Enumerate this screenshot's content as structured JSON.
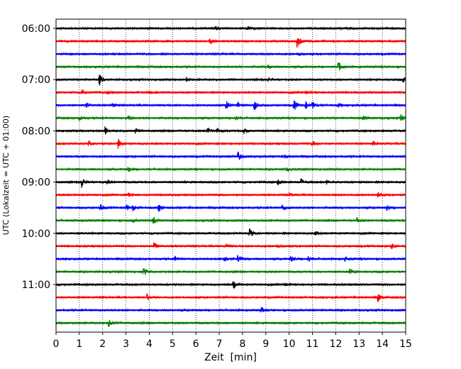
{
  "chart_data": {
    "type": "line",
    "xlabel": "Zeit  [min]",
    "ylabel": "UTC (Lokalzeit = UTC + 01:00)",
    "xlim": [
      0,
      15
    ],
    "xticks": [
      "0",
      "1",
      "2",
      "3",
      "4",
      "5",
      "6",
      "7",
      "8",
      "9",
      "10",
      "11",
      "12",
      "13",
      "14",
      "15"
    ],
    "yticks": [
      {
        "label": "06:00",
        "row": 0
      },
      {
        "label": "07:00",
        "row": 4
      },
      {
        "label": "08:00",
        "row": 8
      },
      {
        "label": "09:00",
        "row": 12
      },
      {
        "label": "10:00",
        "row": 16
      },
      {
        "label": "11:00",
        "row": 20
      }
    ],
    "row_interval_min": 15,
    "start_time": "06:00",
    "grid": "vertical dotted at each minute",
    "series_colors": [
      "#000000",
      "#ff0000",
      "#0000ff",
      "#008000"
    ],
    "traces": [
      {
        "start": "06:00",
        "color": "#000000",
        "events": [
          [
            6.8,
            0.3
          ],
          [
            8.2,
            0.3
          ]
        ]
      },
      {
        "start": "06:15",
        "color": "#ff0000",
        "events": [
          [
            6.6,
            0.5
          ],
          [
            10.35,
            1.3
          ]
        ]
      },
      {
        "start": "06:30",
        "color": "#0000ff",
        "events": [
          [
            4.5,
            0.25
          ],
          [
            10.4,
            0.3
          ]
        ]
      },
      {
        "start": "06:45",
        "color": "#008000",
        "events": [
          [
            9.1,
            0.3
          ],
          [
            12.1,
            0.9
          ]
        ]
      },
      {
        "start": "07:00",
        "color": "#000000",
        "events": [
          [
            1.85,
            1.0
          ],
          [
            5.6,
            0.3
          ],
          [
            9.1,
            0.3
          ],
          [
            14.9,
            0.45
          ]
        ]
      },
      {
        "start": "07:15",
        "color": "#ff0000",
        "events": [
          [
            1.1,
            0.4
          ],
          [
            2.2,
            0.35
          ],
          [
            4.0,
            0.3
          ],
          [
            10.7,
            0.3
          ]
        ]
      },
      {
        "start": "07:30",
        "color": "#0000ff",
        "events": [
          [
            1.3,
            0.35
          ],
          [
            2.4,
            0.35
          ],
          [
            7.3,
            0.8
          ],
          [
            7.8,
            0.5
          ],
          [
            8.5,
            0.9
          ],
          [
            10.2,
            1.0
          ],
          [
            10.7,
            0.6
          ],
          [
            11.0,
            0.5
          ],
          [
            12.1,
            0.35
          ]
        ]
      },
      {
        "start": "07:45",
        "color": "#008000",
        "events": [
          [
            1.0,
            0.45
          ],
          [
            3.1,
            0.4
          ],
          [
            7.7,
            0.4
          ],
          [
            13.2,
            0.35
          ],
          [
            14.8,
            0.85
          ]
        ]
      },
      {
        "start": "08:00",
        "color": "#000000",
        "events": [
          [
            2.1,
            0.7
          ],
          [
            3.4,
            0.55
          ],
          [
            6.5,
            0.6
          ],
          [
            6.9,
            0.4
          ],
          [
            8.05,
            0.45
          ]
        ]
      },
      {
        "start": "08:15",
        "color": "#ff0000",
        "events": [
          [
            1.4,
            0.5
          ],
          [
            2.65,
            0.9
          ],
          [
            11.0,
            0.35
          ],
          [
            13.6,
            0.45
          ]
        ]
      },
      {
        "start": "08:30",
        "color": "#0000ff",
        "events": [
          [
            7.8,
            0.8
          ],
          [
            9.8,
            0.3
          ]
        ]
      },
      {
        "start": "08:45",
        "color": "#008000",
        "events": [
          [
            3.1,
            0.4
          ],
          [
            9.9,
            0.3
          ]
        ]
      },
      {
        "start": "09:00",
        "color": "#000000",
        "events": [
          [
            1.1,
            1.0
          ],
          [
            2.2,
            0.3
          ],
          [
            9.5,
            0.5
          ],
          [
            10.5,
            0.6
          ],
          [
            11.6,
            0.3
          ]
        ]
      },
      {
        "start": "09:15",
        "color": "#ff0000",
        "events": [
          [
            3.1,
            0.45
          ],
          [
            10.0,
            0.35
          ],
          [
            13.8,
            0.45
          ]
        ]
      },
      {
        "start": "09:30",
        "color": "#0000ff",
        "events": [
          [
            1.9,
            0.65
          ],
          [
            3.0,
            0.55
          ],
          [
            3.3,
            0.5
          ],
          [
            4.4,
            0.8
          ],
          [
            9.7,
            0.7
          ],
          [
            14.2,
            0.55
          ]
        ]
      },
      {
        "start": "09:45",
        "color": "#008000",
        "events": [
          [
            3.3,
            0.35
          ],
          [
            4.15,
            0.85
          ],
          [
            12.9,
            0.35
          ]
        ]
      },
      {
        "start": "10:00",
        "color": "#000000",
        "events": [
          [
            8.3,
            0.9
          ],
          [
            11.1,
            0.55
          ]
        ]
      },
      {
        "start": "10:15",
        "color": "#ff0000",
        "events": [
          [
            4.2,
            0.55
          ],
          [
            7.3,
            0.35
          ],
          [
            9.5,
            0.3
          ],
          [
            14.4,
            0.5
          ]
        ]
      },
      {
        "start": "10:30",
        "color": "#0000ff",
        "events": [
          [
            5.1,
            0.55
          ],
          [
            7.2,
            0.6
          ],
          [
            7.8,
            0.75
          ],
          [
            10.05,
            0.6
          ],
          [
            10.8,
            0.55
          ],
          [
            12.4,
            0.45
          ]
        ]
      },
      {
        "start": "10:45",
        "color": "#008000",
        "events": [
          [
            3.75,
            0.65
          ],
          [
            12.6,
            0.45
          ]
        ]
      },
      {
        "start": "11:00",
        "color": "#000000",
        "events": [
          [
            7.6,
            0.8
          ],
          [
            9.8,
            0.3
          ]
        ]
      },
      {
        "start": "11:15",
        "color": "#ff0000",
        "events": [
          [
            3.9,
            0.55
          ],
          [
            13.8,
            0.85
          ]
        ]
      },
      {
        "start": "11:30",
        "color": "#0000ff",
        "events": [
          [
            8.8,
            0.45
          ]
        ]
      },
      {
        "start": "11:45",
        "color": "#008000",
        "events": [
          [
            2.25,
            0.6
          ]
        ]
      }
    ]
  }
}
